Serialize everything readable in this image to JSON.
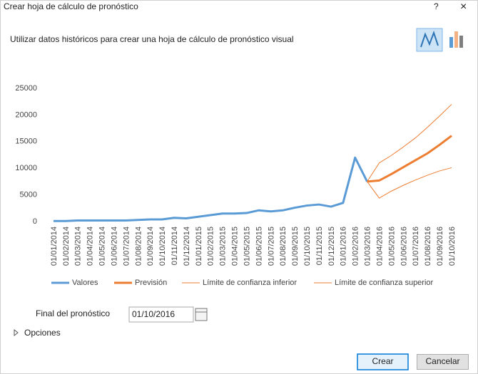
{
  "dialog": {
    "title": "Crear hoja de cálculo de pronóstico",
    "help": "?",
    "close": "×",
    "subtitle": "Utilizar datos históricos para crear una hoja de cálculo de pronóstico visual"
  },
  "chart_data": {
    "type": "line",
    "categories": [
      "01/01/2014",
      "01/02/2014",
      "01/03/2014",
      "01/04/2014",
      "01/05/2014",
      "01/06/2014",
      "01/07/2014",
      "01/08/2014",
      "01/09/2014",
      "01/10/2014",
      "01/11/2014",
      "01/12/2014",
      "01/01/2015",
      "01/02/2015",
      "01/03/2015",
      "01/04/2015",
      "01/05/2015",
      "01/06/2015",
      "01/07/2015",
      "01/08/2015",
      "01/09/2015",
      "01/10/2015",
      "01/11/2015",
      "01/12/2015",
      "01/01/2016",
      "01/02/2016",
      "01/03/2016",
      "01/04/2016",
      "01/05/2016",
      "01/06/2016",
      "01/07/2016",
      "01/08/2016",
      "01/09/2016",
      "01/10/2016"
    ],
    "series": [
      {
        "name": "Valores",
        "color": "#5b9bd5",
        "width": 3,
        "values": [
          100,
          100,
          200,
          200,
          200,
          200,
          200,
          300,
          400,
          400,
          700,
          600,
          900,
          1200,
          1500,
          1500,
          1600,
          2100,
          1900,
          2100,
          2600,
          3000,
          3200,
          2800,
          3500,
          12000,
          7500,
          null,
          null,
          null,
          null,
          null,
          null,
          null
        ]
      },
      {
        "name": "Previsión",
        "color": "#ed7d31",
        "width": 3,
        "values": [
          null,
          null,
          null,
          null,
          null,
          null,
          null,
          null,
          null,
          null,
          null,
          null,
          null,
          null,
          null,
          null,
          null,
          null,
          null,
          null,
          null,
          null,
          null,
          null,
          null,
          null,
          7500,
          7700,
          8900,
          10200,
          11500,
          12800,
          14400,
          16100
        ]
      },
      {
        "name": "Límite de confianza inferior",
        "color": "#ed7d31",
        "width": 1,
        "values": [
          null,
          null,
          null,
          null,
          null,
          null,
          null,
          null,
          null,
          null,
          null,
          null,
          null,
          null,
          null,
          null,
          null,
          null,
          null,
          null,
          null,
          null,
          null,
          null,
          null,
          null,
          7500,
          4400,
          5700,
          6800,
          7800,
          8700,
          9500,
          10100
        ]
      },
      {
        "name": "Límite de confianza superior",
        "color": "#ed7d31",
        "width": 1,
        "values": [
          null,
          null,
          null,
          null,
          null,
          null,
          null,
          null,
          null,
          null,
          null,
          null,
          null,
          null,
          null,
          null,
          null,
          null,
          null,
          null,
          null,
          null,
          null,
          null,
          null,
          null,
          7500,
          11000,
          12400,
          14000,
          15700,
          17700,
          19800,
          22000
        ]
      }
    ],
    "ylim": [
      0,
      25000
    ],
    "yticks": [
      0,
      5000,
      10000,
      15000,
      20000,
      25000
    ],
    "grid": false
  },
  "form": {
    "label": "Final del pronóstico",
    "value": "01/10/2016"
  },
  "options": "Opciones",
  "buttons": [
    "Crear",
    "Cancelar"
  ]
}
